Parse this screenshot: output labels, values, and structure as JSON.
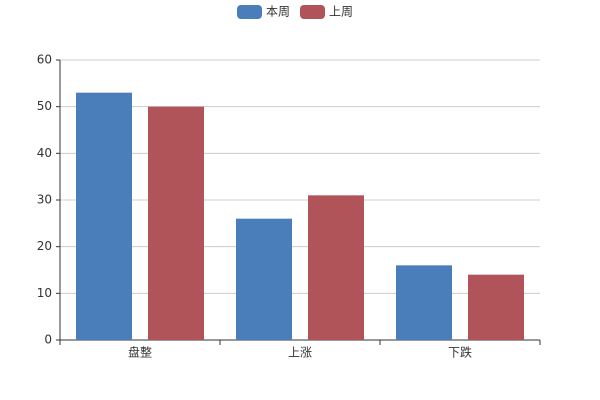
{
  "chart_data": {
    "type": "bar",
    "categories": [
      "盘整",
      "上涨",
      "下跌"
    ],
    "series": [
      {
        "name": "本周",
        "color": "#4a7ebb",
        "values": [
          53,
          26,
          16
        ]
      },
      {
        "name": "上周",
        "color": "#b0545a",
        "values": [
          50,
          31,
          14
        ]
      }
    ],
    "ylim": [
      0,
      60
    ],
    "yticks": [
      0,
      10,
      20,
      30,
      40,
      50,
      60
    ],
    "grid": true,
    "legend": "top"
  }
}
